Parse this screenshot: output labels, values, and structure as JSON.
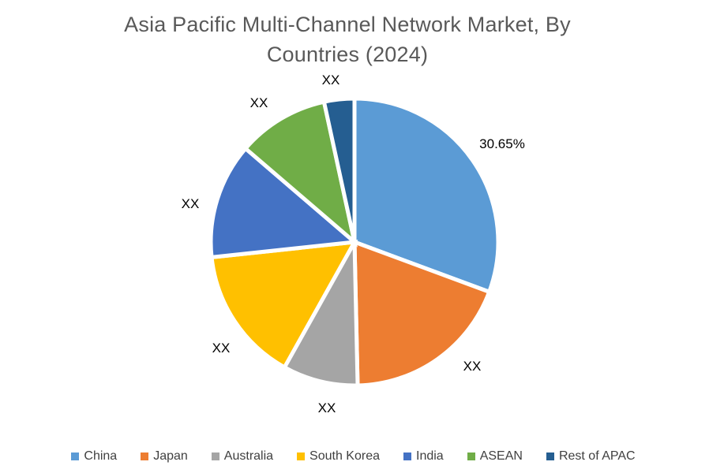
{
  "header": {
    "line1": "Asia Pacific Multi-Channel Network Market, By",
    "line2": "Countries (2024)"
  },
  "chart_data": {
    "type": "pie",
    "title": "Asia Pacific Multi-Channel Network Market, By Countries (2024)",
    "categories": [
      "China",
      "Japan",
      "Australia",
      "South Korea",
      "India",
      "ASEAN",
      "Rest of APAC"
    ],
    "values_pct": [
      30.65,
      19.0,
      8.45,
      15.2,
      13.0,
      10.3,
      3.4
    ],
    "displayed_labels": [
      "30.65%",
      "XX",
      "XX",
      "XX",
      "XX",
      "XX",
      "XX"
    ],
    "colors": [
      "#5B9BD5",
      "#ED7D31",
      "#A5A5A5",
      "#FFC000",
      "#4472C4",
      "#70AD47",
      "#255E91"
    ],
    "start_angle_deg": 0,
    "direction": "clockwise",
    "slice_border_color": "#FFFFFF",
    "legend_position": "bottom",
    "title_color": "#595959",
    "label_color": "#000000"
  }
}
